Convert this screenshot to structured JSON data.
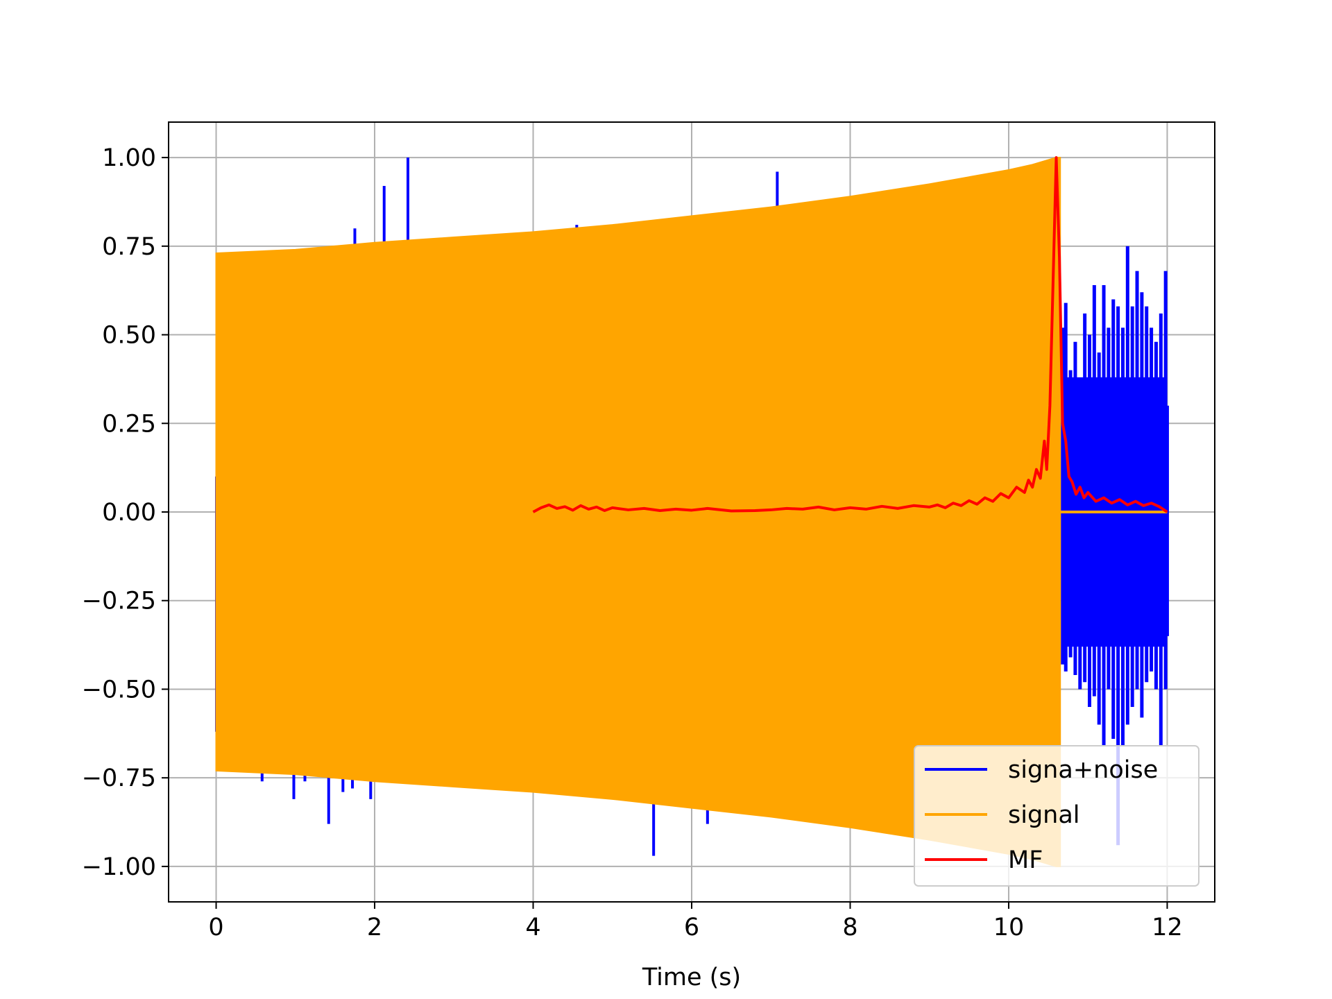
{
  "chart_data": {
    "type": "line",
    "title": "",
    "xlabel": "Time (s)",
    "ylabel": "",
    "xlim": [
      -0.6,
      12.6
    ],
    "ylim": [
      -1.1,
      1.1
    ],
    "xticks": [
      0,
      2,
      4,
      6,
      8,
      10,
      12
    ],
    "xtick_labels": [
      "0",
      "2",
      "4",
      "6",
      "8",
      "10",
      "12"
    ],
    "yticks": [
      -1.0,
      -0.75,
      -0.5,
      -0.25,
      0.0,
      0.25,
      0.5,
      0.75,
      1.0
    ],
    "ytick_labels": [
      "−1.00",
      "−0.75",
      "−0.50",
      "−0.25",
      "0.00",
      "0.25",
      "0.50",
      "0.75",
      "1.00"
    ],
    "grid": true,
    "legend_position": "lower right",
    "series": [
      {
        "name": "signa+noise",
        "color": "#0000ff",
        "style": "noise band",
        "x_range": [
          0,
          12
        ],
        "spikes": [
          {
            "x": 0.58,
            "y": -0.76
          },
          {
            "x": 0.98,
            "y": -0.81
          },
          {
            "x": 1.12,
            "y": -0.76
          },
          {
            "x": 1.42,
            "y": -0.88
          },
          {
            "x": 1.6,
            "y": -0.79
          },
          {
            "x": 1.72,
            "y": -0.78
          },
          {
            "x": 1.75,
            "y": 0.8
          },
          {
            "x": 1.95,
            "y": -0.81
          },
          {
            "x": 2.12,
            "y": 0.92
          },
          {
            "x": 2.42,
            "y": 1.0
          },
          {
            "x": 4.55,
            "y": 0.81
          },
          {
            "x": 5.52,
            "y": -0.97
          },
          {
            "x": 6.2,
            "y": -0.88
          },
          {
            "x": 7.08,
            "y": 0.96
          }
        ],
        "tail": [
          {
            "x": 10.68,
            "hi": 0.52,
            "lo": -0.43
          },
          {
            "x": 10.72,
            "hi": 0.59,
            "lo": -0.45
          },
          {
            "x": 10.78,
            "hi": 0.4,
            "lo": -0.41
          },
          {
            "x": 10.84,
            "hi": 0.48,
            "lo": -0.46
          },
          {
            "x": 10.9,
            "hi": 0.35,
            "lo": -0.5
          },
          {
            "x": 10.96,
            "hi": 0.56,
            "lo": -0.48
          },
          {
            "x": 11.02,
            "hi": 0.5,
            "lo": -0.55
          },
          {
            "x": 11.08,
            "hi": 0.64,
            "lo": -0.52
          },
          {
            "x": 11.14,
            "hi": 0.45,
            "lo": -0.6
          },
          {
            "x": 11.2,
            "hi": 0.64,
            "lo": -0.66
          },
          {
            "x": 11.26,
            "hi": 0.52,
            "lo": -0.5
          },
          {
            "x": 11.32,
            "hi": 0.6,
            "lo": -0.64
          },
          {
            "x": 11.38,
            "hi": 0.58,
            "lo": -0.94
          },
          {
            "x": 11.44,
            "hi": 0.52,
            "lo": -0.66
          },
          {
            "x": 11.5,
            "hi": 0.75,
            "lo": -0.6
          },
          {
            "x": 11.56,
            "hi": 0.58,
            "lo": -0.55
          },
          {
            "x": 11.62,
            "hi": 0.68,
            "lo": -0.5
          },
          {
            "x": 11.68,
            "hi": 0.62,
            "lo": -0.58
          },
          {
            "x": 11.74,
            "hi": 0.58,
            "lo": -0.48
          },
          {
            "x": 11.8,
            "hi": 0.52,
            "lo": -0.45
          },
          {
            "x": 11.86,
            "hi": 0.48,
            "lo": -0.5
          },
          {
            "x": 11.92,
            "hi": 0.56,
            "lo": -0.66
          },
          {
            "x": 11.98,
            "hi": 0.68,
            "lo": -0.5
          },
          {
            "x": 12.0,
            "hi": 0.3,
            "lo": -0.35
          }
        ]
      },
      {
        "name": "signal",
        "color": "#ffa500",
        "style": "chirp envelope",
        "x": [
          0,
          1,
          2,
          3,
          4,
          5,
          6,
          7,
          8,
          9,
          9.5,
          10,
          10.3,
          10.6,
          10.65
        ],
        "upper": [
          0.73,
          0.74,
          0.76,
          0.775,
          0.79,
          0.81,
          0.835,
          0.86,
          0.89,
          0.925,
          0.945,
          0.965,
          0.98,
          1.0,
          1.0
        ],
        "lower": [
          -0.73,
          -0.74,
          -0.76,
          -0.775,
          -0.79,
          -0.81,
          -0.835,
          -0.86,
          -0.89,
          -0.925,
          -0.945,
          -0.965,
          -0.98,
          -1.0,
          -1.0
        ]
      },
      {
        "name": "MF",
        "color": "#ff0000",
        "style": "line",
        "x": [
          4.0,
          4.1,
          4.2,
          4.3,
          4.4,
          4.5,
          4.6,
          4.7,
          4.8,
          4.9,
          5.0,
          5.2,
          5.4,
          5.6,
          5.8,
          6.0,
          6.2,
          6.5,
          6.8,
          7.0,
          7.2,
          7.4,
          7.6,
          7.8,
          8.0,
          8.2,
          8.4,
          8.6,
          8.8,
          9.0,
          9.1,
          9.2,
          9.3,
          9.4,
          9.5,
          9.6,
          9.7,
          9.8,
          9.9,
          10.0,
          10.1,
          10.2,
          10.25,
          10.3,
          10.35,
          10.4,
          10.45,
          10.48,
          10.52,
          10.56,
          10.6,
          10.64,
          10.68,
          10.72,
          10.76,
          10.8,
          10.85,
          10.9,
          10.95,
          11.0,
          11.1,
          11.2,
          11.3,
          11.4,
          11.5,
          11.6,
          11.7,
          11.8,
          11.9,
          12.0
        ],
        "y": [
          0.0,
          0.012,
          0.02,
          0.01,
          0.015,
          0.005,
          0.018,
          0.008,
          0.014,
          0.004,
          0.012,
          0.006,
          0.01,
          0.004,
          0.008,
          0.005,
          0.01,
          0.003,
          0.004,
          0.006,
          0.01,
          0.008,
          0.014,
          0.006,
          0.012,
          0.008,
          0.016,
          0.01,
          0.018,
          0.014,
          0.02,
          0.012,
          0.025,
          0.018,
          0.032,
          0.022,
          0.04,
          0.03,
          0.052,
          0.04,
          0.07,
          0.055,
          0.09,
          0.07,
          0.12,
          0.095,
          0.2,
          0.12,
          0.3,
          0.65,
          1.0,
          0.72,
          0.25,
          0.2,
          0.1,
          0.085,
          0.05,
          0.07,
          0.04,
          0.055,
          0.03,
          0.04,
          0.025,
          0.035,
          0.02,
          0.03,
          0.018,
          0.025,
          0.015,
          0.0
        ]
      }
    ]
  }
}
